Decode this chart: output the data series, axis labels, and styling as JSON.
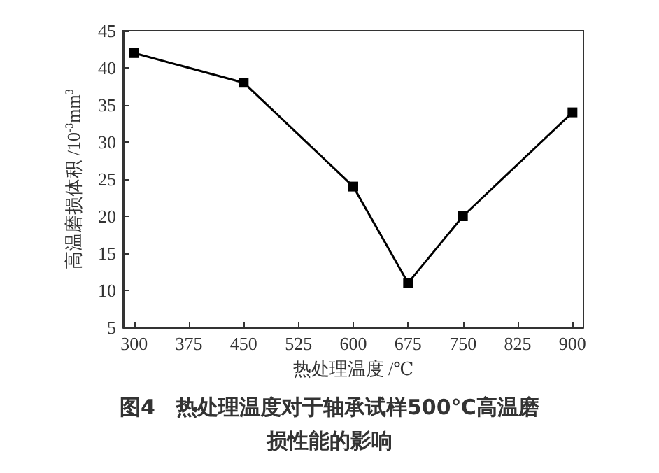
{
  "chart_data": {
    "type": "line",
    "title": "图4　热处理温度对于轴承试样500℃高温磨损性能的影响",
    "xlabel": "热处理温度 /℃",
    "ylabel": "高温磨损体积 /10$^{-3}$mm$^{3}$",
    "x": [
      300,
      450,
      600,
      675,
      750,
      900
    ],
    "series": [
      {
        "color": "#000000",
        "values": [
          42,
          38,
          24,
          11,
          20,
          34
        ]
      }
    ],
    "xlim": [
      285,
      915
    ],
    "xticks": [
      300,
      375,
      450,
      525,
      600,
      675,
      750,
      825,
      900
    ],
    "ylim": [
      5,
      45
    ],
    "yticks": [
      5,
      10,
      15,
      20,
      25,
      30,
      35,
      40,
      45
    ],
    "grid": false,
    "marker": "square",
    "line_style": "solid"
  }
}
